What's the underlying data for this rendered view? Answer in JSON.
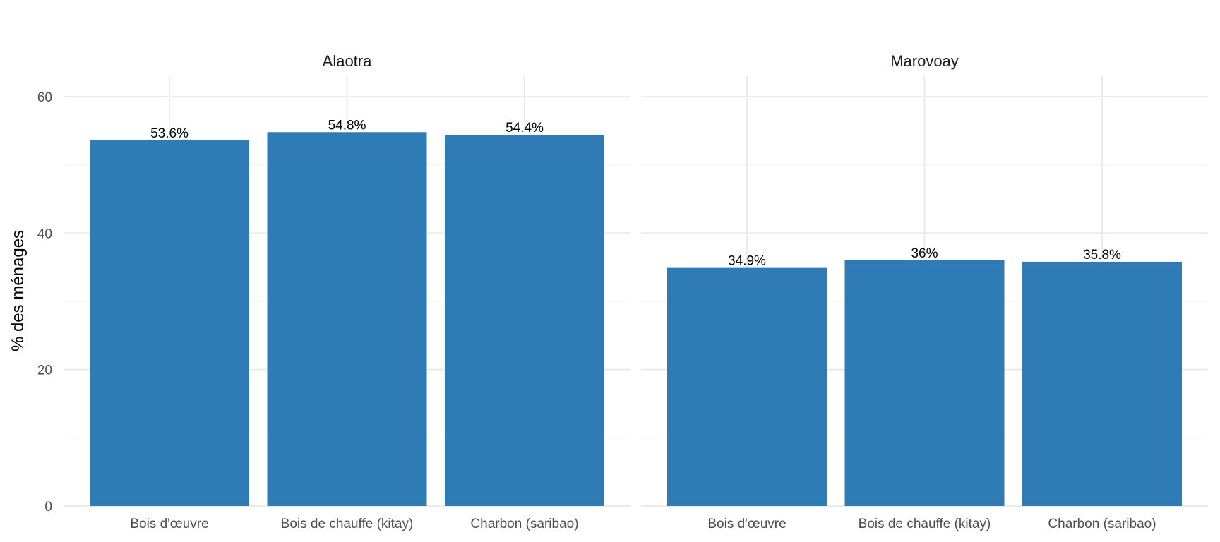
{
  "chart_data": {
    "type": "bar",
    "ylabel": "% des ménages",
    "xlabel": "",
    "ylim": [
      0,
      62
    ],
    "yticks": [
      0,
      20,
      40,
      60
    ],
    "grid": true,
    "bar_color": "#2E7BB6",
    "categories": [
      "Bois d'œuvre",
      "Bois de chauffe (kitay)",
      "Charbon (saribao)"
    ],
    "facets": [
      {
        "name": "Alaotra",
        "values": [
          53.6,
          54.8,
          54.4
        ],
        "labels": [
          "53.6%",
          "54.8%",
          "54.4%"
        ]
      },
      {
        "name": "Marovoay",
        "values": [
          34.9,
          36,
          35.8
        ],
        "labels": [
          "34.9%",
          "36%",
          "35.8%"
        ]
      }
    ]
  }
}
